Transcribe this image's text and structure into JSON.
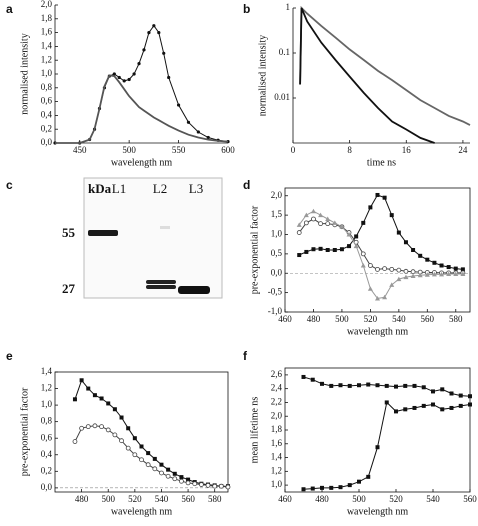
{
  "chart_data": [
    {
      "type": "line",
      "label": "a",
      "xlabel": "wavelength nm",
      "ylabel": "normalised intensity",
      "xlim": [
        425,
        600
      ],
      "xticks": [
        450,
        500,
        550,
        600
      ],
      "ylim": [
        0,
        2.0
      ],
      "yticks": [
        {
          "value": 0,
          "label": "0,0"
        },
        {
          "value": 0.2,
          "label": "0,2"
        },
        {
          "value": 0.4,
          "label": "0,4"
        },
        {
          "value": 0.6,
          "label": "0,6"
        },
        {
          "value": 0.8,
          "label": "0,8"
        },
        {
          "value": 1.0,
          "label": "1,0"
        },
        {
          "value": 1.2,
          "label": "1,2"
        },
        {
          "value": 1.4,
          "label": "1,4"
        },
        {
          "value": 1.6,
          "label": "1,6"
        },
        {
          "value": 1.8,
          "label": "1,8"
        },
        {
          "value": 2.0,
          "label": "2,0"
        }
      ],
      "frame": false,
      "x": [
        425,
        450,
        460,
        465,
        470,
        475,
        480,
        485,
        490,
        495,
        500,
        505,
        510,
        515,
        520,
        525,
        530,
        535,
        540,
        550,
        560,
        570,
        580,
        590,
        600
      ],
      "series": [
        {
          "color": "#111111",
          "marker": "dot",
          "values": [
            0,
            0,
            0.05,
            0.2,
            0.5,
            0.8,
            0.97,
            1.0,
            0.95,
            0.9,
            0.92,
            1.0,
            1.15,
            1.35,
            1.6,
            1.7,
            1.6,
            1.3,
            0.95,
            0.55,
            0.3,
            0.16,
            0.08,
            0.04,
            0.02
          ]
        },
        {
          "color": "#555555",
          "marker": "none",
          "values": [
            0,
            0,
            0.05,
            0.2,
            0.5,
            0.82,
            0.98,
            0.97,
            0.88,
            0.78,
            0.68,
            0.6,
            0.52,
            0.47,
            0.42,
            0.37,
            0.33,
            0.29,
            0.25,
            0.18,
            0.12,
            0.08,
            0.05,
            0.03,
            0.02
          ]
        }
      ]
    },
    {
      "type": "line",
      "label": "b",
      "xlabel": "time ns",
      "ylabel": "normalised intensity",
      "xlim": [
        0,
        25
      ],
      "xticks": [
        0,
        8,
        16,
        24
      ],
      "log_y": true,
      "ylim": [
        0.001,
        1
      ],
      "yticks": [
        1,
        0.1,
        0.01
      ],
      "frame": false,
      "x": [
        1,
        1.2,
        2,
        4,
        6,
        8,
        10,
        12,
        14,
        16,
        18,
        20,
        22,
        24,
        25
      ],
      "series": [
        {
          "color": "#666666",
          "marker": "none",
          "values": [
            0.02,
            1,
            0.75,
            0.4,
            0.22,
            0.12,
            0.07,
            0.04,
            0.025,
            0.015,
            0.009,
            0.006,
            0.004,
            0.003,
            0.0025
          ]
        },
        {
          "color": "#111111",
          "marker": "none",
          "values": [
            0.02,
            1,
            0.5,
            0.17,
            0.07,
            0.03,
            0.013,
            0.006,
            0.003,
            0.002,
            0.0013,
            0.001,
            null,
            null,
            null
          ]
        }
      ]
    },
    {
      "type": "line",
      "label": "d",
      "xlabel": "wavelength nm",
      "ylabel": "pre-exponential factor",
      "xlim": [
        460,
        590
      ],
      "xticks": [
        460,
        480,
        500,
        520,
        540,
        560,
        580
      ],
      "ylim": [
        -1.0,
        2.2
      ],
      "yticks": [
        {
          "value": -1.0,
          "label": "-1,0"
        },
        {
          "value": -0.5,
          "label": "-0,5"
        },
        {
          "value": 0,
          "label": "0,0"
        },
        {
          "value": 0.5,
          "label": "0,5"
        },
        {
          "value": 1.0,
          "label": "1,0"
        },
        {
          "value": 1.5,
          "label": "1,5"
        },
        {
          "value": 2.0,
          "label": "2,0"
        }
      ],
      "frame": true,
      "zero_line": true,
      "x": [
        470,
        475,
        480,
        485,
        490,
        495,
        500,
        505,
        510,
        515,
        520,
        525,
        530,
        535,
        540,
        545,
        550,
        555,
        560,
        565,
        570,
        575,
        580,
        585
      ],
      "series": [
        {
          "color": "#111111",
          "marker": "square",
          "values": [
            0.47,
            0.55,
            0.62,
            0.63,
            0.6,
            0.6,
            0.62,
            0.7,
            0.95,
            1.3,
            1.7,
            2.02,
            1.95,
            1.5,
            1.05,
            0.8,
            0.6,
            0.45,
            0.35,
            0.27,
            0.2,
            0.16,
            0.12,
            0.1
          ]
        },
        {
          "color": "#444444",
          "marker": "circle",
          "values": [
            1.05,
            1.3,
            1.4,
            1.28,
            1.28,
            1.25,
            1.2,
            1.05,
            0.8,
            0.5,
            0.2,
            0.1,
            0.12,
            0.1,
            0.08,
            0.05,
            0.04,
            0.03,
            0.02,
            0.02,
            0.01,
            0.01,
            0.01,
            0.01
          ]
        },
        {
          "color": "#999999",
          "marker": "triangle",
          "values": [
            1.25,
            1.5,
            1.6,
            1.5,
            1.4,
            1.3,
            1.2,
            1.0,
            0.7,
            0.2,
            -0.4,
            -0.65,
            -0.62,
            -0.3,
            -0.15,
            -0.1,
            -0.07,
            -0.05,
            -0.04,
            -0.03,
            -0.03,
            -0.02,
            -0.02,
            -0.02
          ]
        }
      ]
    },
    {
      "type": "line",
      "label": "e",
      "xlabel": "wavelength nm",
      "ylabel": "pre-exponential factor",
      "xlim": [
        460,
        590
      ],
      "xticks": [
        480,
        500,
        520,
        540,
        560,
        580
      ],
      "ylim": [
        -0.05,
        1.4
      ],
      "yticks": [
        {
          "value": 0,
          "label": "0,0"
        },
        {
          "value": 0.2,
          "label": "0,2"
        },
        {
          "value": 0.4,
          "label": "0,4"
        },
        {
          "value": 0.6,
          "label": "0,6"
        },
        {
          "value": 0.8,
          "label": "0,8"
        },
        {
          "value": 1.0,
          "label": "1,0"
        },
        {
          "value": 1.2,
          "label": "1,2"
        },
        {
          "value": 1.4,
          "label": "1,4"
        }
      ],
      "frame": true,
      "zero_line": true,
      "x": [
        475,
        480,
        485,
        490,
        495,
        500,
        505,
        510,
        515,
        520,
        525,
        530,
        535,
        540,
        545,
        550,
        555,
        560,
        565,
        570,
        575,
        580,
        585,
        590
      ],
      "series": [
        {
          "color": "#111111",
          "marker": "square",
          "values": [
            1.07,
            1.3,
            1.2,
            1.12,
            1.08,
            1.02,
            0.95,
            0.85,
            0.72,
            0.6,
            0.5,
            0.42,
            0.35,
            0.28,
            0.22,
            0.17,
            0.13,
            0.1,
            0.07,
            0.05,
            0.04,
            0.03,
            0.02,
            0.02
          ]
        },
        {
          "color": "#444444",
          "marker": "circle",
          "values": [
            0.56,
            0.72,
            0.74,
            0.75,
            0.74,
            0.7,
            0.64,
            0.57,
            0.48,
            0.4,
            0.34,
            0.28,
            0.23,
            0.18,
            0.14,
            0.11,
            0.08,
            0.06,
            0.05,
            0.04,
            0.03,
            0.02,
            0.02,
            0.01
          ]
        }
      ]
    },
    {
      "type": "line",
      "label": "f",
      "xlabel": "wavelength nm",
      "ylabel": "mean lifetime ns",
      "xlim": [
        460,
        560
      ],
      "xticks": [
        460,
        480,
        500,
        520,
        540,
        560
      ],
      "ylim": [
        0.9,
        2.7
      ],
      "yticks": [
        {
          "value": 1.0,
          "label": "1,0"
        },
        {
          "value": 1.2,
          "label": "1,2"
        },
        {
          "value": 1.4,
          "label": "1,4"
        },
        {
          "value": 1.6,
          "label": "1,6"
        },
        {
          "value": 1.8,
          "label": "1,8"
        },
        {
          "value": 2.0,
          "label": "2,0"
        },
        {
          "value": 2.2,
          "label": "2,2"
        },
        {
          "value": 2.4,
          "label": "2,4"
        },
        {
          "value": 2.6,
          "label": "2,6"
        }
      ],
      "frame": true,
      "x": [
        470,
        475,
        480,
        485,
        490,
        495,
        500,
        505,
        510,
        515,
        520,
        525,
        530,
        535,
        540,
        545,
        550,
        555,
        560
      ],
      "series": [
        {
          "color": "#111111",
          "marker": "square",
          "values": [
            2.57,
            2.53,
            2.47,
            2.44,
            2.45,
            2.44,
            2.45,
            2.46,
            2.45,
            2.44,
            2.43,
            2.44,
            2.44,
            2.42,
            2.36,
            2.39,
            2.33,
            2.3,
            2.29
          ]
        },
        {
          "color": "#111111",
          "marker": "square",
          "values": [
            0.94,
            0.95,
            0.96,
            0.96,
            0.97,
            1.0,
            1.05,
            1.12,
            1.55,
            2.2,
            2.07,
            2.1,
            2.12,
            2.15,
            2.17,
            2.1,
            2.12,
            2.15,
            2.17
          ]
        }
      ]
    }
  ],
  "gel": {
    "label": "c",
    "unit": "kDa",
    "lanes": [
      "L1",
      "L2",
      "L3"
    ],
    "markers": [
      "55",
      "27"
    ]
  }
}
